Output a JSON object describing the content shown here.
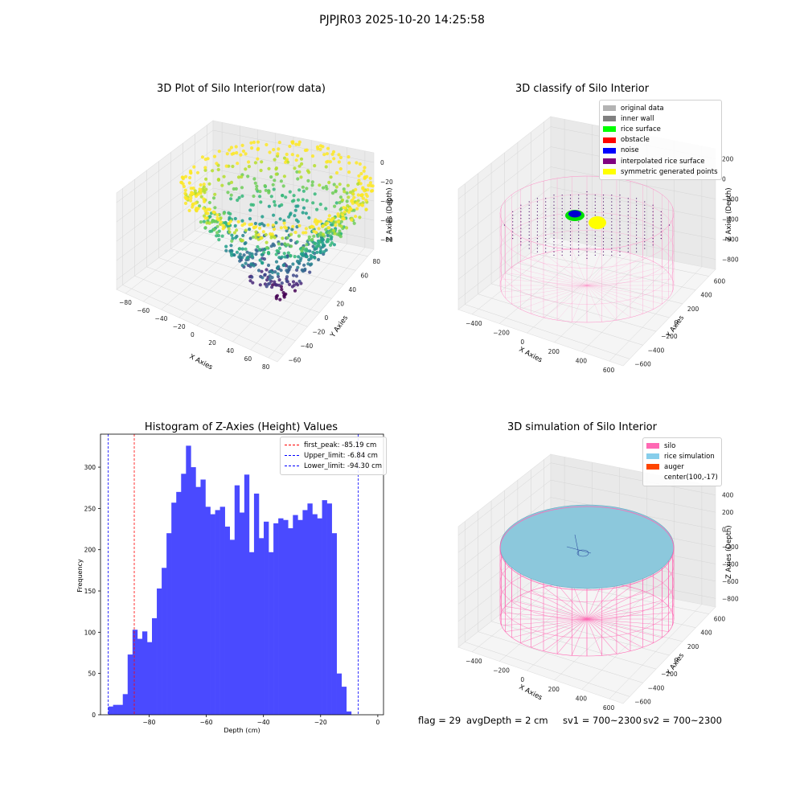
{
  "suptitle": "PJPJR03 2025-10-20 14:25:58",
  "footer": {
    "flag": "flag = 29",
    "avg_depth": "avgDepth = 2 cm",
    "sv1": "sv1 = 700~2300",
    "sv2": "sv2 = 700~2300"
  },
  "panels": {
    "raw": {
      "title": "3D Plot of Silo Interior(row data)",
      "xlabel": "X Axies",
      "ylabel": "Y Axies",
      "zlabel": "Z Axies (Depth)",
      "xticks": [
        "−80",
        "−60",
        "−40",
        "−20",
        "0",
        "20",
        "40",
        "60",
        "80"
      ],
      "yticks": [
        "−60",
        "−40",
        "−20",
        "0",
        "20",
        "40",
        "60",
        "80"
      ],
      "zticks": [
        "0",
        "−20",
        "−40",
        "−60",
        "−80"
      ]
    },
    "classify": {
      "title": "3D classify of Silo Interior",
      "xlabel": "X Axies",
      "ylabel": "Y Axies",
      "zlabel": "Z Axies (Depth)",
      "xticks": [
        "−400",
        "−200",
        "0",
        "200",
        "400",
        "600"
      ],
      "yticks": [
        "−600",
        "−400",
        "−200",
        "0",
        "200",
        "400",
        "600"
      ],
      "zticks": [
        "200",
        "0",
        "−200",
        "−400",
        "−600",
        "−800"
      ],
      "legend": [
        {
          "label": "original data",
          "color": "#b3b3b3"
        },
        {
          "label": "inner wall",
          "color": "#808080"
        },
        {
          "label": "rice surface",
          "color": "#00ff00"
        },
        {
          "label": "obstacle",
          "color": "#ff0000"
        },
        {
          "label": "noise",
          "color": "#0000ff"
        },
        {
          "label": "interpolated rice surface",
          "color": "#800080"
        },
        {
          "label": "symmetric generated points",
          "color": "#ffff00"
        }
      ]
    },
    "simulation": {
      "title": "3D simulation of Silo Interior",
      "xlabel": "X Axies",
      "ylabel": "Y Axies",
      "zlabel": "Z Axies (Depth)",
      "xticks": [
        "−400",
        "−200",
        "0",
        "200",
        "400",
        "600"
      ],
      "yticks": [
        "−600",
        "−400",
        "−200",
        "0",
        "200",
        "400",
        "600"
      ],
      "zticks": [
        "400",
        "200",
        "0",
        "−200",
        "−400",
        "−600",
        "−800"
      ],
      "legend": [
        {
          "label": "silo",
          "color": "#ff69b4"
        },
        {
          "label": "rice simulation",
          "color": "#87ceeb"
        },
        {
          "label": "auger",
          "color": "#ff4500"
        },
        {
          "label": "center(100,-17)",
          "color": ""
        }
      ]
    }
  },
  "chart_data": {
    "type": "bar",
    "title": "Histogram of Z-Axies (Height) Values",
    "xlabel": "Depth (cm)",
    "ylabel": "Frequency",
    "xlim": [
      -97,
      2
    ],
    "ylim": [
      0,
      340
    ],
    "xticks": [
      -80,
      -60,
      -40,
      -20,
      0
    ],
    "yticks": [
      0,
      50,
      100,
      150,
      200,
      250,
      300
    ],
    "bin_start": -94.3,
    "bin_width": 1.7,
    "values": [
      10,
      12,
      12,
      25,
      73,
      103,
      92,
      101,
      88,
      117,
      153,
      178,
      220,
      257,
      270,
      292,
      326,
      300,
      276,
      285,
      252,
      243,
      248,
      252,
      228,
      212,
      278,
      245,
      291,
      197,
      268,
      214,
      234,
      197,
      232,
      238,
      236,
      226,
      242,
      236,
      248,
      256,
      243,
      238,
      260,
      256,
      220,
      50,
      34,
      4
    ],
    "color": "#4a4aff",
    "vlines": [
      {
        "label": "first_peak: -85.19 cm",
        "x": -85.19,
        "color": "#ff0000"
      },
      {
        "label": "Upper_limit: -6.84 cm",
        "x": -6.84,
        "color": "#0000ff"
      },
      {
        "label": "Lower_limit: -94.30 cm",
        "x": -94.3,
        "color": "#0000ff"
      }
    ],
    "legend_position": "top-right"
  }
}
